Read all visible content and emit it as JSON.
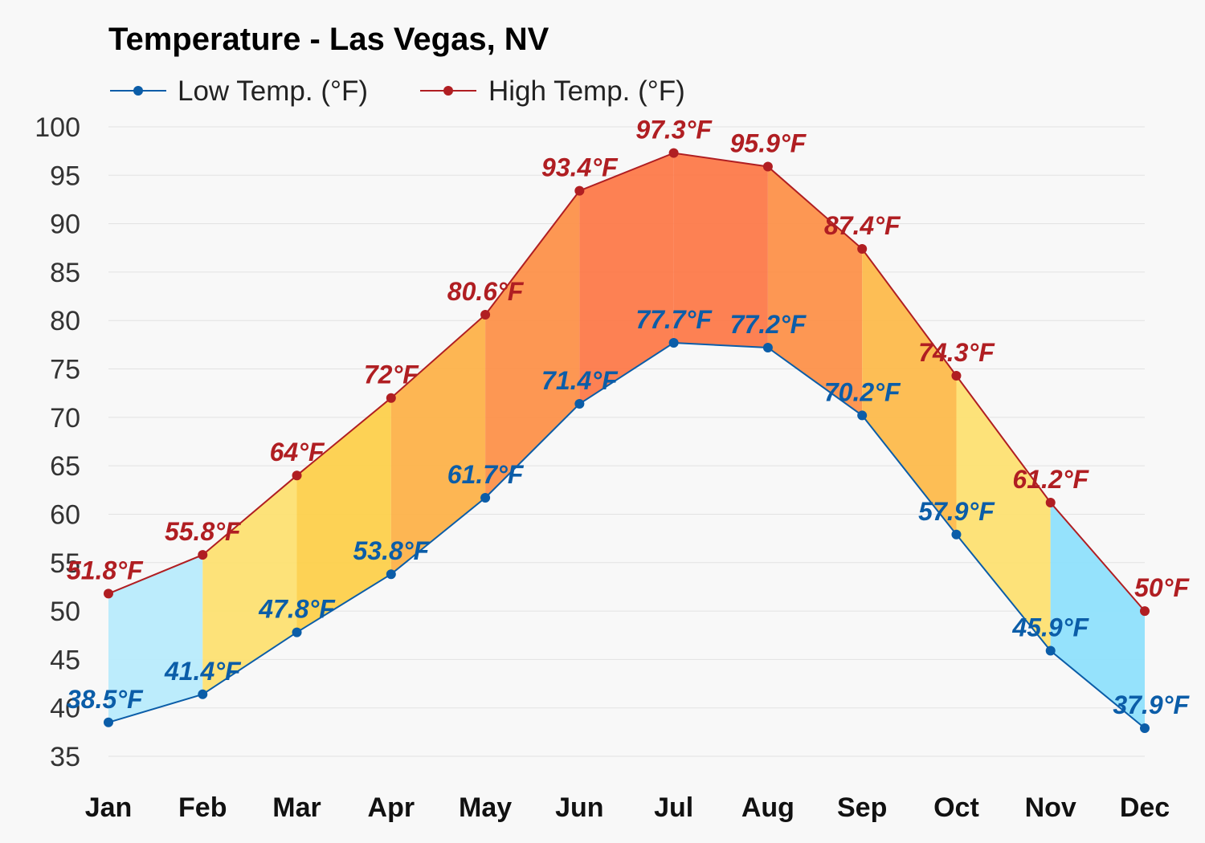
{
  "chart_data": {
    "type": "area",
    "title": "Temperature - Las Vegas, NV",
    "categories": [
      "Jan",
      "Feb",
      "Mar",
      "Apr",
      "May",
      "Jun",
      "Jul",
      "Aug",
      "Sep",
      "Oct",
      "Nov",
      "Dec"
    ],
    "series": [
      {
        "name": "Low Temp. (°F)",
        "values": [
          38.5,
          41.4,
          47.8,
          53.8,
          61.7,
          71.4,
          77.7,
          77.2,
          70.2,
          57.9,
          45.9,
          37.9
        ],
        "labels": [
          "38.5°F",
          "41.4°F",
          "47.8°F",
          "53.8°F",
          "61.7°F",
          "71.4°F",
          "77.7°F",
          "77.2°F",
          "70.2°F",
          "57.9°F",
          "45.9°F",
          "37.9°F"
        ],
        "color": "#0b5da8"
      },
      {
        "name": "High Temp. (°F)",
        "values": [
          51.8,
          55.8,
          64,
          72,
          80.6,
          93.4,
          97.3,
          95.9,
          87.4,
          74.3,
          61.2,
          50
        ],
        "labels": [
          "51.8°F",
          "55.8°F",
          "64°F",
          "72°F",
          "80.6°F",
          "93.4°F",
          "97.3°F",
          "95.9°F",
          "87.4°F",
          "74.3°F",
          "61.2°F",
          "50°F"
        ],
        "color": "#b01e22"
      }
    ],
    "yticks": [
      "35",
      "40",
      "45",
      "50",
      "55",
      "60",
      "65",
      "70",
      "75",
      "80",
      "85",
      "90",
      "95",
      "100"
    ],
    "ylim": [
      35,
      100
    ],
    "grid": true,
    "legend_position": "top-left",
    "band_colors": [
      "#b8ebfc",
      "#fde072",
      "#fdd04c",
      "#fdb24a",
      "#fd914a",
      "#fd7a4a",
      "#fd7a4a",
      "#fd914a",
      "#fdba4c",
      "#fde072",
      "#8fe0fc"
    ]
  }
}
